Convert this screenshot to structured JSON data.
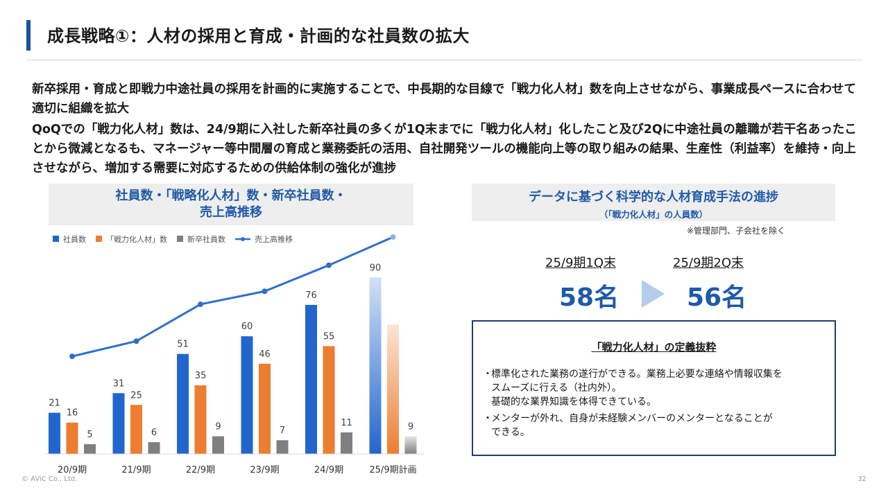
{
  "slide": {
    "title": "成長戦略①：人材の採用と育成・計画的な社員数の拡大",
    "paragraph1": "新卒採用・育成と即戦力中途社員の採用を計画的に実施することで、中長期的な目線で「戦力化人材」数を向上させながら、事業成長ペースに合わせて適切に組織を拡大",
    "paragraph2": "QoQでの「戦力化人材」数は、24/9期に入社した新卒社員の多くが1Q末までに「戦力化人材」化したこと及び2Qに中途社員の離職が若干名あったことから微減となるも、マネージャー等中間層の育成と業務委託の活用、自社開発ツールの機能向上等の取り組みの結果、生産性（利益率）を維持・向上させながら、増加する需要に対応するための供給体制の強化が進捗",
    "footer_copyright": "© AViC Co., Ltd.",
    "page_number": "32"
  },
  "left_panel": {
    "header_line1": "社員数・「戦略化人材」数・新卒社員数・",
    "header_line2": "売上高推移"
  },
  "right_panel": {
    "header_line1": "データに基づく科学的な人材育成手法の進捗",
    "header_line2": "（「戦力化人材」の人員数）",
    "note": "※管理部門、子会社を除く",
    "period1_label": "25/9期1Q末",
    "period1_value": "58名",
    "period2_label": "25/9期2Q末",
    "period2_value": "56名",
    "definition_title": "「戦力化人材」の定義抜粋",
    "definition_items": [
      "標準化された業務の遂行ができる。業務上必要な連絡や情報収集を\nスムーズに行える（社内外）。\n基礎的な業界知識を体得できている。",
      "メンターが外れ、自身が未経験メンバーのメンターとなることが\nできる。"
    ],
    "bullet_mark": "・"
  },
  "colors": {
    "employees": "#2166cc",
    "strategic": "#ed7d31",
    "new_grads": "#7f7f7f",
    "sales_line": "#2e6fcc",
    "title_accent": "#1f4e9a",
    "heading_text": "#1f5aa8"
  },
  "chart_data": {
    "type": "bar",
    "categories": [
      "20/9期",
      "21/9期",
      "22/9期",
      "23/9期",
      "24/9期",
      "25/9期計画"
    ],
    "series": [
      {
        "name": "社員数",
        "values": [
          21,
          31,
          51,
          60,
          76,
          90
        ]
      },
      {
        "name": "「戦力化人材」数",
        "values": [
          16,
          25,
          35,
          46,
          55,
          null
        ]
      },
      {
        "name": "新卒社員数",
        "values": [
          5,
          6,
          9,
          7,
          11,
          9
        ]
      }
    ],
    "line_series": {
      "name": "売上高推移",
      "type": "line",
      "relative_values": [
        0.45,
        0.52,
        0.69,
        0.75,
        0.87,
        1.0
      ]
    },
    "projected_category_index": 5,
    "projected_unlabeled_values": {
      "「戦力化人材」数": 66
    },
    "ylim": [
      0,
      100
    ],
    "grid": false,
    "legend_position": "top-left"
  }
}
